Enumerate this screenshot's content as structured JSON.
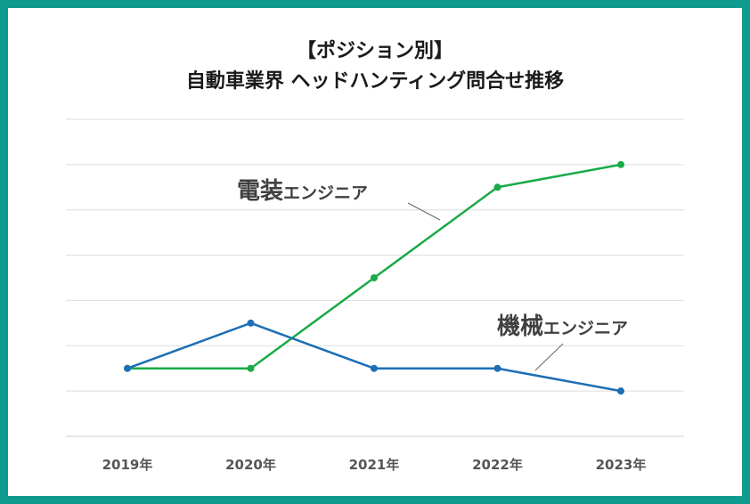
{
  "chart_data": {
    "type": "line",
    "title_line1": "【ポジション別】",
    "title_line2": "自動車業界 ヘッドハンティング問合せ推移",
    "categories": [
      "2019年",
      "2020年",
      "2021年",
      "2022年",
      "2023年"
    ],
    "ylim": [
      0,
      7
    ],
    "grid": true,
    "yaxis_labels_shown": false,
    "series": [
      {
        "name": "電装エンジニア",
        "label_main": "電装",
        "label_sub": "エンジニア",
        "color": "#1aaa48",
        "values": [
          1.5,
          1.5,
          3.5,
          5.5,
          6.0
        ]
      },
      {
        "name": "機械エンジニア",
        "label_main": "機械",
        "label_sub": "エンジニア",
        "color": "#1c6fb5",
        "values": [
          1.5,
          2.5,
          1.5,
          1.5,
          1.0
        ]
      }
    ]
  }
}
